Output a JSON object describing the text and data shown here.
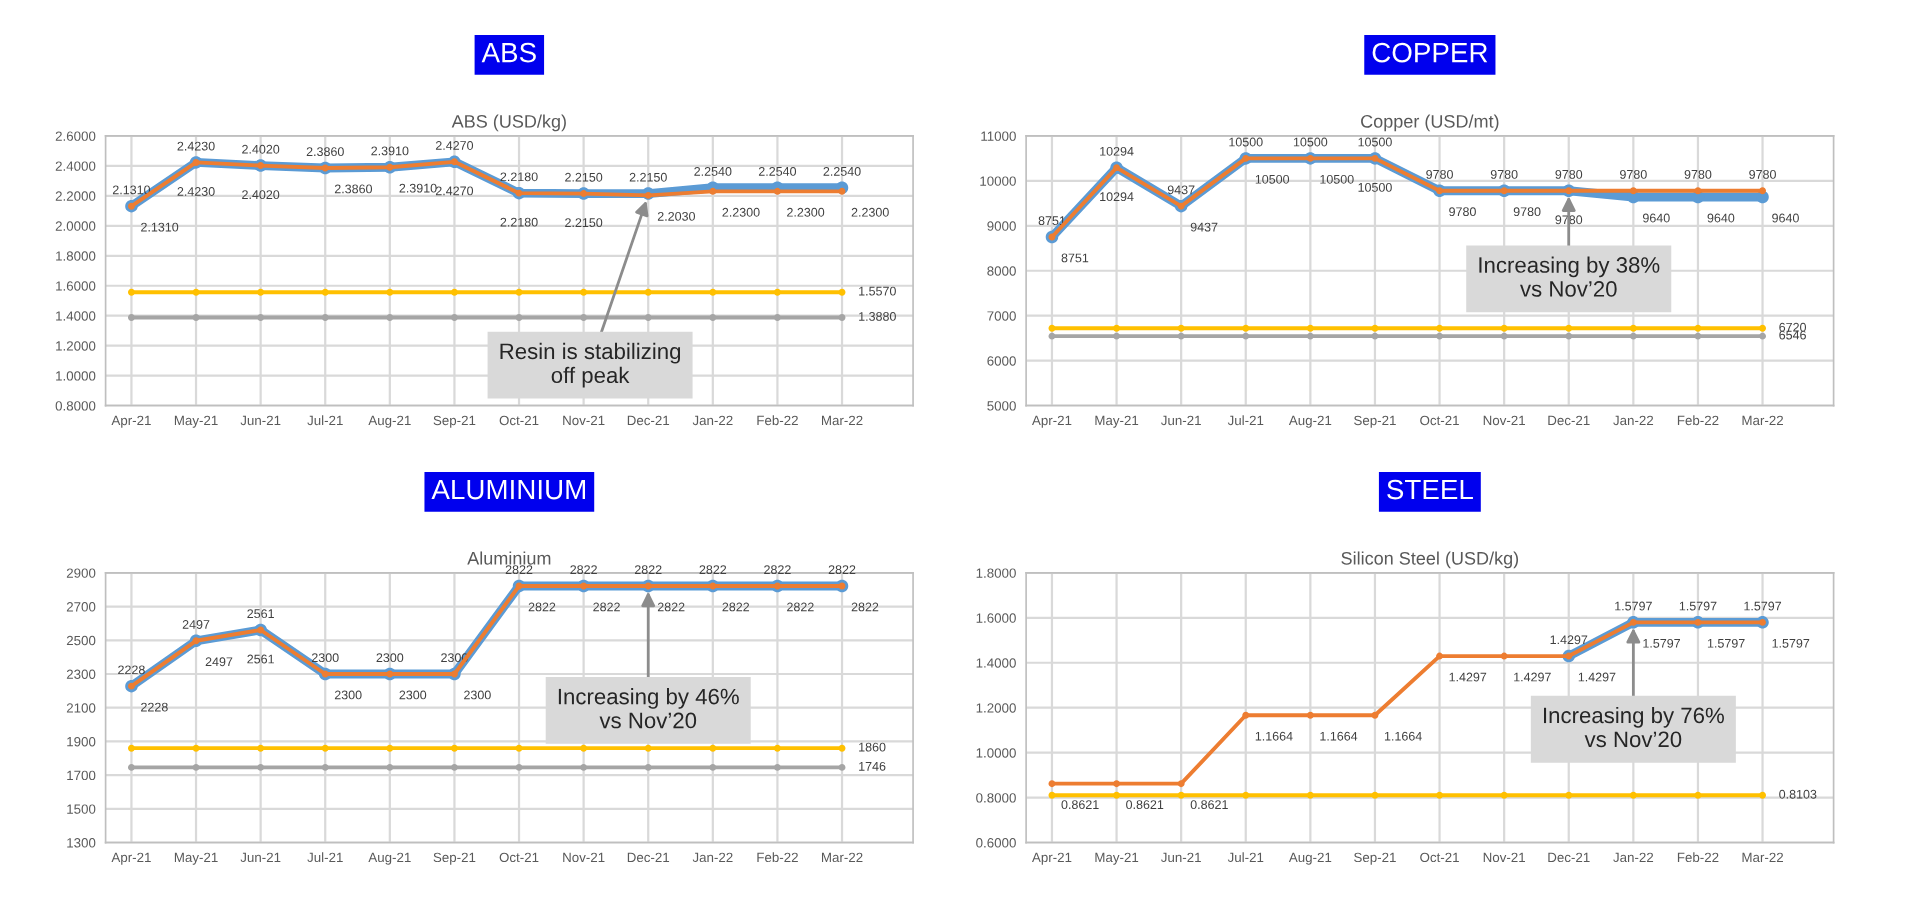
{
  "chart_data": [
    {
      "type": "line",
      "title": "ABS",
      "subtitle": "ABS (USD/kg)",
      "categories": [
        "Apr-21",
        "May-21",
        "Jun-21",
        "Jul-21",
        "Aug-21",
        "Sep-21",
        "Oct-21",
        "Nov-21",
        "Dec-21",
        "Jan-22",
        "Feb-22",
        "Mar-22"
      ],
      "series": [
        {
          "color": "#5b9bd5",
          "values": [
            2.131,
            2.423,
            2.402,
            2.386,
            2.391,
            2.427,
            2.218,
            2.215,
            2.215,
            2.254,
            2.254,
            2.254
          ],
          "value_labels": [
            "2.1310",
            "2.4230",
            "2.4020",
            "2.3860",
            "2.3910",
            "2.4270",
            "2.2180",
            "2.2150",
            "2.2150",
            "2.2540",
            "2.2540",
            "2.2540"
          ]
        },
        {
          "color": "#ed7d31",
          "values": [
            2.131,
            2.423,
            2.402,
            2.386,
            2.391,
            2.427,
            2.218,
            2.215,
            2.203,
            2.23,
            2.23,
            2.23
          ],
          "value_labels": [
            "2.1310",
            "2.4230",
            "2.4020",
            "2.3860",
            "2.3910",
            "2.4270",
            "2.2180",
            "2.2150",
            "2.2030",
            "2.2300",
            "2.2300",
            "2.2300"
          ]
        },
        {
          "color": "#ffc000",
          "values": [
            1.557,
            1.557,
            1.557,
            1.557,
            1.557,
            1.557,
            1.557,
            1.557,
            1.557,
            1.557,
            1.557,
            1.557
          ],
          "value_labels": [
            null,
            null,
            null,
            null,
            null,
            null,
            null,
            null,
            null,
            null,
            null,
            "1.5570"
          ]
        },
        {
          "color": "#a5a5a5",
          "values": [
            1.388,
            1.388,
            1.388,
            1.388,
            1.388,
            1.388,
            1.388,
            1.388,
            1.388,
            1.388,
            1.388,
            1.388
          ],
          "value_labels": [
            null,
            null,
            null,
            null,
            null,
            null,
            null,
            null,
            null,
            null,
            null,
            "1.3880"
          ]
        }
      ],
      "ylim": [
        0.8,
        2.6
      ],
      "yticks": [
        {
          "value": 0.8,
          "label": "0.8000"
        },
        {
          "value": 1.0,
          "label": "1.0000"
        },
        {
          "value": 1.2,
          "label": "1.2000"
        },
        {
          "value": 1.4,
          "label": "1.4000"
        },
        {
          "value": 1.6,
          "label": "1.6000"
        },
        {
          "value": 1.8,
          "label": "1.8000"
        },
        {
          "value": 2.0,
          "label": "2.0000"
        },
        {
          "value": 2.2,
          "label": "2.2000"
        },
        {
          "value": 2.4,
          "label": "2.4000"
        },
        {
          "value": 2.6,
          "label": "2.6000"
        }
      ],
      "grid": true,
      "marker": "circle",
      "legend": false,
      "annotations": [
        {
          "text": "Resin is stabilizing\noff peak",
          "x": "Dec-21",
          "y": 2.203
        }
      ]
    },
    {
      "type": "line",
      "title": "COPPER",
      "subtitle": "Copper (USD/mt)",
      "categories": [
        "Apr-21",
        "May-21",
        "Jun-21",
        "Jul-21",
        "Aug-21",
        "Sep-21",
        "Oct-21",
        "Nov-21",
        "Dec-21",
        "Jan-22",
        "Feb-22",
        "Mar-22"
      ],
      "series": [
        {
          "color": "#5b9bd5",
          "values": [
            8751,
            10294,
            9437,
            10500,
            10500,
            10500,
            9780,
            9780,
            9780,
            9640,
            9640,
            9640
          ],
          "value_labels": [
            "8751",
            "10294",
            "9437",
            "10500",
            "10500",
            "10500",
            "9780",
            "9780",
            "9780",
            "9640",
            "9640",
            "9640"
          ]
        },
        {
          "color": "#ed7d31",
          "values": [
            8751,
            10294,
            9437,
            10500,
            10500,
            10500,
            9780,
            9780,
            9780,
            9780,
            9780,
            9780
          ],
          "value_labels": [
            "8751",
            "10294",
            "9437",
            "10500",
            "10500",
            "10500",
            "9780",
            "9780",
            "9780",
            "9780",
            "9780",
            "9780"
          ]
        },
        {
          "color": "#ffc000",
          "values": [
            6720,
            6720,
            6720,
            6720,
            6720,
            6720,
            6720,
            6720,
            6720,
            6720,
            6720,
            6720
          ],
          "value_labels": [
            null,
            null,
            null,
            null,
            null,
            null,
            null,
            null,
            null,
            null,
            null,
            "6720"
          ]
        },
        {
          "color": "#a5a5a5",
          "values": [
            6546,
            6546,
            6546,
            6546,
            6546,
            6546,
            6546,
            6546,
            6546,
            6546,
            6546,
            6546
          ],
          "value_labels": [
            null,
            null,
            null,
            null,
            null,
            null,
            null,
            null,
            null,
            null,
            null,
            "6546"
          ]
        }
      ],
      "ylim": [
        5000,
        11000
      ],
      "yticks": [
        5000,
        6000,
        7000,
        8000,
        9000,
        10000,
        11000
      ],
      "grid": true,
      "marker": "circle",
      "legend": false,
      "annotations": [
        {
          "text": "Increasing by 38%\nvs Nov’20",
          "x": "Dec-21",
          "y": 9780
        }
      ]
    },
    {
      "type": "line",
      "title": "ALUMINIUM",
      "subtitle": "Aluminium",
      "categories": [
        "Apr-21",
        "May-21",
        "Jun-21",
        "Jul-21",
        "Aug-21",
        "Sep-21",
        "Oct-21",
        "Nov-21",
        "Dec-21",
        "Jan-22",
        "Feb-22",
        "Mar-22"
      ],
      "series": [
        {
          "color": "#5b9bd5",
          "values": [
            2228,
            2497,
            2561,
            2300,
            2300,
            2300,
            2822,
            2822,
            2822,
            2822,
            2822,
            2822
          ],
          "value_labels": [
            "2228",
            "2497",
            "2561",
            "2300",
            "2300",
            "2300",
            "2822",
            "2822",
            "2822",
            "2822",
            "2822",
            "2822"
          ]
        },
        {
          "color": "#ed7d31",
          "values": [
            2228,
            2497,
            2561,
            2300,
            2300,
            2300,
            2822,
            2822,
            2822,
            2822,
            2822,
            2822
          ],
          "value_labels": [
            "2228",
            "2497",
            "2561",
            "2300",
            "2300",
            "2300",
            "2822",
            "2822",
            "2822",
            "2822",
            "2822",
            "2822"
          ]
        },
        {
          "color": "#ffc000",
          "values": [
            1860,
            1860,
            1860,
            1860,
            1860,
            1860,
            1860,
            1860,
            1860,
            1860,
            1860,
            1860
          ],
          "value_labels": [
            null,
            null,
            null,
            null,
            null,
            null,
            null,
            null,
            null,
            null,
            null,
            "1860"
          ]
        },
        {
          "color": "#a5a5a5",
          "values": [
            1746,
            1746,
            1746,
            1746,
            1746,
            1746,
            1746,
            1746,
            1746,
            1746,
            1746,
            1746
          ],
          "value_labels": [
            null,
            null,
            null,
            null,
            null,
            null,
            null,
            null,
            null,
            null,
            null,
            "1746"
          ]
        }
      ],
      "ylim": [
        1300,
        2900
      ],
      "yticks": [
        1300,
        1500,
        1700,
        1900,
        2100,
        2300,
        2500,
        2700,
        2900
      ],
      "grid": true,
      "marker": "circle",
      "legend": false,
      "annotations": [
        {
          "text": "Increasing by 46%\nvs Nov’20",
          "x": "Dec-21",
          "y": 2822
        }
      ]
    },
    {
      "type": "line",
      "title": "STEEL",
      "subtitle": "Silicon Steel (USD/kg)",
      "categories": [
        "Apr-21",
        "May-21",
        "Jun-21",
        "Jul-21",
        "Aug-21",
        "Sep-21",
        "Oct-21",
        "Nov-21",
        "Dec-21",
        "Jan-22",
        "Feb-22",
        "Mar-22"
      ],
      "series": [
        {
          "color": "#5b9bd5",
          "values": [
            null,
            null,
            null,
            null,
            null,
            null,
            null,
            null,
            1.4297,
            1.5797,
            1.5797,
            1.5797
          ],
          "value_labels": [
            null,
            null,
            null,
            null,
            null,
            null,
            null,
            null,
            "1.4297",
            "1.5797",
            "1.5797",
            "1.5797"
          ]
        },
        {
          "color": "#ed7d31",
          "values": [
            0.8621,
            0.8621,
            0.8621,
            1.1664,
            1.1664,
            1.1664,
            1.4297,
            1.4297,
            1.4297,
            1.5797,
            1.5797,
            1.5797
          ],
          "value_labels": [
            "0.8621",
            "0.8621",
            "0.8621",
            "1.1664",
            "1.1664",
            "1.1664",
            "1.4297",
            "1.4297",
            "1.4297",
            "1.5797",
            "1.5797",
            "1.5797"
          ]
        },
        {
          "color": "#ffc000",
          "values": [
            0.8103,
            0.8103,
            0.8103,
            0.8103,
            0.8103,
            0.8103,
            0.8103,
            0.8103,
            0.8103,
            0.8103,
            0.8103,
            0.8103
          ],
          "value_labels": [
            null,
            null,
            null,
            null,
            null,
            null,
            null,
            null,
            null,
            null,
            null,
            "0.8103"
          ]
        }
      ],
      "ylim": [
        0.6,
        1.8
      ],
      "yticks": [
        {
          "value": 0.6,
          "label": "0.6000"
        },
        {
          "value": 0.8,
          "label": "0.8000"
        },
        {
          "value": 1.0,
          "label": "1.0000"
        },
        {
          "value": 1.2,
          "label": "1.2000"
        },
        {
          "value": 1.4,
          "label": "1.4000"
        },
        {
          "value": 1.6,
          "label": "1.6000"
        },
        {
          "value": 1.8,
          "label": "1.8000"
        }
      ],
      "grid": true,
      "marker": "circle",
      "legend": false,
      "annotations": [
        {
          "text": "Increasing by 76%\nvs Nov’20",
          "x": "Jan-22",
          "y": 1.5797
        }
      ]
    }
  ]
}
